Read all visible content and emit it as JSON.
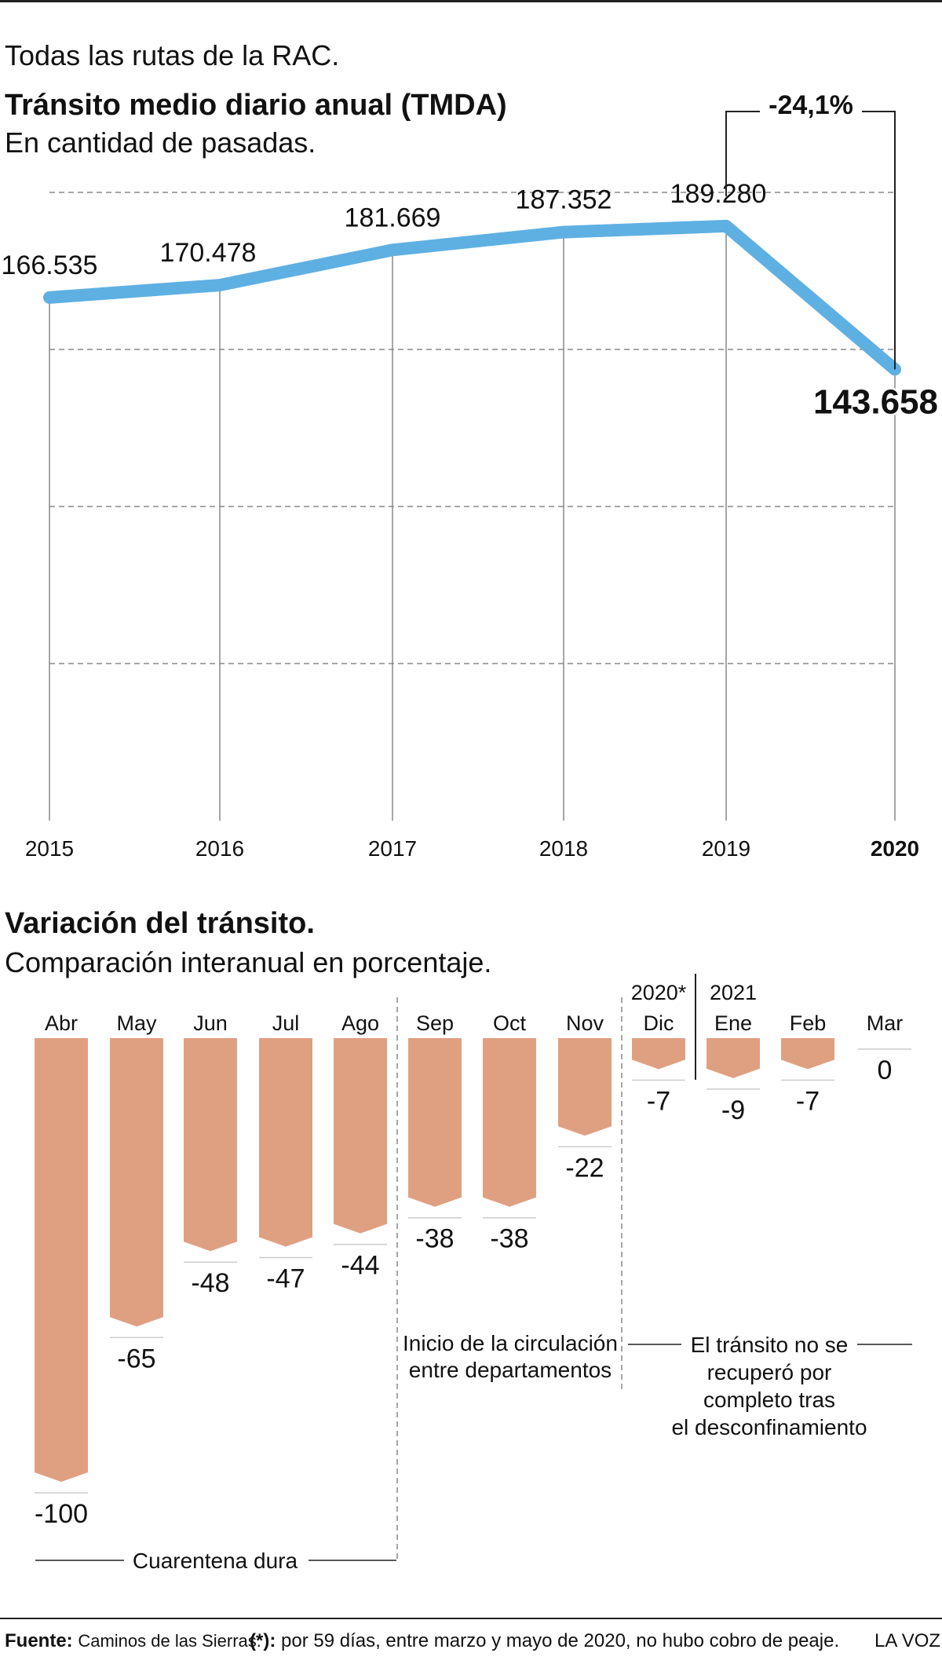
{
  "header": {
    "intro": "Todas las rutas de la RAC.",
    "title": "Tránsito medio diario anual (TMDA)",
    "subtitle": "En cantidad de pasadas."
  },
  "variation_header": {
    "title": "Variación del tránsito.",
    "subtitle": "Comparación interanual en porcentaje."
  },
  "colors": {
    "line": "#5fb0e2",
    "bar": "#dfa082",
    "grid": "#888888",
    "text": "#111111"
  },
  "chart_data": [
    {
      "type": "line",
      "title": "Tránsito medio diario anual (TMDA)",
      "subtitle": "En cantidad de pasadas.",
      "x": [
        "2015",
        "2016",
        "2017",
        "2018",
        "2019",
        "2020"
      ],
      "values": [
        166535,
        170478,
        181669,
        187352,
        189280,
        143658
      ],
      "labels": [
        "166.535",
        "170.478",
        "181.669",
        "187.352",
        "189.280",
        "143.658"
      ],
      "highlight_index": 5,
      "ylim": [
        0,
        200000
      ],
      "grid": "horizontal dashed",
      "change_annotation": "-24,1%"
    },
    {
      "type": "bar",
      "title": "Variación del tránsito.",
      "subtitle": "Comparación interanual en porcentaje.",
      "categories": [
        "Abr",
        "May",
        "Jun",
        "Jul",
        "Ago",
        "Sep",
        "Oct",
        "Nov",
        "Dic",
        "Ene",
        "Feb",
        "Mar"
      ],
      "values": [
        -100,
        -65,
        -48,
        -47,
        -44,
        -38,
        -38,
        -22,
        -7,
        -9,
        -7,
        0
      ],
      "value_labels": [
        "-100",
        "-65",
        "-48",
        "-47",
        "-44",
        "-38",
        "-38",
        "-22",
        "-7",
        "-9",
        "-7",
        "0"
      ],
      "year_labels": [
        {
          "index": 8,
          "text": "2020*"
        },
        {
          "index": 9,
          "text": "2021"
        }
      ],
      "ylim": [
        -100,
        0
      ],
      "annotations": {
        "quarantine": "Cuarentena dura",
        "circulation": [
          "Inicio de la circulación",
          "entre departamentos"
        ],
        "recovery": [
          "El tránsito no se",
          "recuperó por",
          "completo tras",
          "el desconfinamiento"
        ]
      }
    }
  ],
  "footer": {
    "source_label": "Fuente:",
    "source_text": "Caminos de las Sierras.",
    "note_label": "(*):",
    "note_text": "por 59 días, entre marzo y mayo de 2020, no hubo cobro de peaje.",
    "brand": "LA VOZ"
  }
}
